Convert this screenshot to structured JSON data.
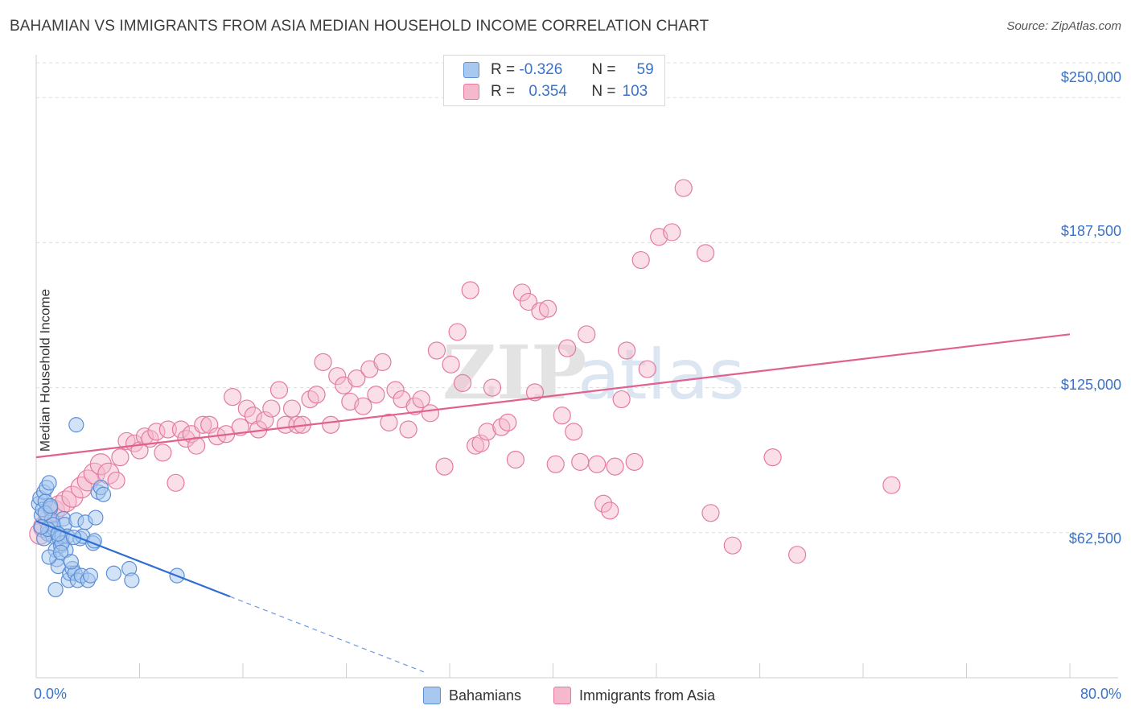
{
  "title": "BAHAMIAN VS IMMIGRANTS FROM ASIA MEDIAN HOUSEHOLD INCOME CORRELATION CHART",
  "source": "Source: ZipAtlas.com",
  "watermark": "ZIPatlas",
  "colors": {
    "blue_fill": "#a8c8f0",
    "blue_stroke": "#5b8fd6",
    "blue_line": "#2f6fd0",
    "pink_fill": "#f5b8cc",
    "pink_stroke": "#e47aa0",
    "pink_line": "#e0608e",
    "axis_text": "#3a72c8"
  },
  "legend": {
    "rows": [
      {
        "r_label": "R =",
        "r_value": "-0.326",
        "n_label": "N =",
        "n_value": "59"
      },
      {
        "r_label": "R =",
        "r_value": "0.354",
        "n_label": "N =",
        "n_value": "103"
      }
    ]
  },
  "chart_data": {
    "type": "scatter",
    "title": "BAHAMIAN VS IMMIGRANTS FROM ASIA MEDIAN HOUSEHOLD INCOME CORRELATION CHART",
    "xlabel": "",
    "ylabel": "Median Household Income",
    "xlim": [
      0,
      80
    ],
    "ylim": [
      0,
      265000
    ],
    "x_tick_labels": [
      "0.0%",
      "80.0%"
    ],
    "y_ticks": [
      62500,
      125000,
      187500,
      250000
    ],
    "y_tick_labels": [
      "$62,500",
      "$125,000",
      "$187,500",
      "$250,000"
    ],
    "series": [
      {
        "name": "Bahamians",
        "r": -0.326,
        "n": 59,
        "trend": {
          "x0": 0,
          "y0": 67500,
          "x1": 15,
          "y1": 35000,
          "dash_x1": 30,
          "dash_y1": 2500
        },
        "points": [
          [
            0.2,
            75000
          ],
          [
            0.3,
            77500
          ],
          [
            0.4,
            70000
          ],
          [
            0.5,
            72500
          ],
          [
            0.6,
            80000
          ],
          [
            0.7,
            76000
          ],
          [
            0.8,
            82000
          ],
          [
            0.9,
            62000
          ],
          [
            1.0,
            84000
          ],
          [
            1.1,
            73000
          ],
          [
            1.2,
            68000
          ],
          [
            1.3,
            61000
          ],
          [
            1.4,
            64000
          ],
          [
            1.5,
            55000
          ],
          [
            1.6,
            51000
          ],
          [
            1.7,
            48000
          ],
          [
            1.8,
            60000
          ],
          [
            1.9,
            57000
          ],
          [
            2.0,
            61000
          ],
          [
            2.1,
            68500
          ],
          [
            2.2,
            66000
          ],
          [
            2.3,
            55000
          ],
          [
            2.4,
            61000
          ],
          [
            2.5,
            42000
          ],
          [
            2.6,
            45000
          ],
          [
            2.8,
            47000
          ],
          [
            3.0,
            45000
          ],
          [
            3.1,
            68000
          ],
          [
            3.2,
            42000
          ],
          [
            3.4,
            60000
          ],
          [
            3.5,
            44000
          ],
          [
            3.6,
            61000
          ],
          [
            3.8,
            67000
          ],
          [
            4.0,
            42000
          ],
          [
            4.2,
            44000
          ],
          [
            4.4,
            58000
          ],
          [
            4.6,
            69000
          ],
          [
            4.8,
            80000
          ],
          [
            5.0,
            82000
          ],
          [
            6.0,
            45000
          ],
          [
            7.2,
            47000
          ],
          [
            7.4,
            42000
          ],
          [
            10.9,
            44000
          ],
          [
            1.5,
            38000
          ],
          [
            1.0,
            52000
          ],
          [
            0.6,
            60000
          ],
          [
            1.3,
            66000
          ],
          [
            2.0,
            58000
          ],
          [
            3.1,
            109000
          ],
          [
            0.9,
            64000
          ],
          [
            1.7,
            62000
          ],
          [
            2.9,
            60500
          ],
          [
            4.5,
            59000
          ],
          [
            0.4,
            65000
          ],
          [
            1.9,
            54000
          ],
          [
            2.7,
            50000
          ],
          [
            0.7,
            71000
          ],
          [
            5.2,
            79000
          ],
          [
            1.1,
            74000
          ]
        ]
      },
      {
        "name": "Immigrants from Asia",
        "r": 0.354,
        "n": 103,
        "trend": {
          "x0": 0,
          "y0": 95000,
          "x1": 80,
          "y1": 148000
        },
        "points": [
          [
            0.3,
            62000
          ],
          [
            0.6,
            65000
          ],
          [
            1.0,
            68000
          ],
          [
            1.4,
            72000
          ],
          [
            1.8,
            74000
          ],
          [
            2.3,
            76000
          ],
          [
            2.8,
            78000
          ],
          [
            3.5,
            82000
          ],
          [
            4.0,
            85000
          ],
          [
            4.5,
            88000
          ],
          [
            5.0,
            92000
          ],
          [
            5.6,
            88000
          ],
          [
            6.2,
            85000
          ],
          [
            6.5,
            95000
          ],
          [
            7.0,
            102000
          ],
          [
            7.6,
            101000
          ],
          [
            8.0,
            98000
          ],
          [
            8.4,
            104000
          ],
          [
            8.8,
            103000
          ],
          [
            9.3,
            106000
          ],
          [
            9.8,
            97000
          ],
          [
            10.2,
            107000
          ],
          [
            10.8,
            84000
          ],
          [
            11.2,
            107000
          ],
          [
            11.6,
            103000
          ],
          [
            12.0,
            105000
          ],
          [
            12.4,
            100000
          ],
          [
            12.9,
            109000
          ],
          [
            13.4,
            109000
          ],
          [
            14.0,
            104000
          ],
          [
            14.7,
            105000
          ],
          [
            15.2,
            121000
          ],
          [
            15.8,
            108000
          ],
          [
            16.3,
            116000
          ],
          [
            16.8,
            113000
          ],
          [
            17.2,
            107000
          ],
          [
            17.7,
            111000
          ],
          [
            18.2,
            116000
          ],
          [
            18.8,
            124000
          ],
          [
            19.3,
            109000
          ],
          [
            19.8,
            116000
          ],
          [
            20.2,
            109000
          ],
          [
            20.6,
            109000
          ],
          [
            21.2,
            120000
          ],
          [
            21.7,
            122000
          ],
          [
            22.2,
            136000
          ],
          [
            22.8,
            109000
          ],
          [
            23.3,
            130000
          ],
          [
            23.8,
            126000
          ],
          [
            24.3,
            119000
          ],
          [
            24.8,
            129000
          ],
          [
            25.3,
            117000
          ],
          [
            25.8,
            133000
          ],
          [
            26.3,
            122000
          ],
          [
            26.8,
            136000
          ],
          [
            27.3,
            110000
          ],
          [
            27.8,
            124000
          ],
          [
            28.3,
            120000
          ],
          [
            28.8,
            107000
          ],
          [
            29.3,
            117000
          ],
          [
            29.8,
            120000
          ],
          [
            30.5,
            114000
          ],
          [
            31.0,
            141000
          ],
          [
            31.6,
            91000
          ],
          [
            32.1,
            135000
          ],
          [
            32.6,
            149000
          ],
          [
            33.0,
            127000
          ],
          [
            33.6,
            167000
          ],
          [
            34.0,
            100000
          ],
          [
            34.4,
            101000
          ],
          [
            34.9,
            106000
          ],
          [
            35.3,
            125000
          ],
          [
            36.0,
            108000
          ],
          [
            36.5,
            110000
          ],
          [
            37.1,
            94000
          ],
          [
            37.6,
            166000
          ],
          [
            38.1,
            162000
          ],
          [
            38.6,
            123000
          ],
          [
            39.0,
            158000
          ],
          [
            39.6,
            159000
          ],
          [
            40.2,
            92000
          ],
          [
            40.7,
            113000
          ],
          [
            41.1,
            142000
          ],
          [
            41.6,
            106000
          ],
          [
            42.1,
            93000
          ],
          [
            42.6,
            148000
          ],
          [
            43.4,
            92000
          ],
          [
            43.9,
            75000
          ],
          [
            44.4,
            72000
          ],
          [
            44.8,
            91000
          ],
          [
            45.3,
            120000
          ],
          [
            45.7,
            141000
          ],
          [
            46.3,
            93000
          ],
          [
            46.8,
            180000
          ],
          [
            47.3,
            133000
          ],
          [
            48.2,
            190000
          ],
          [
            49.2,
            192000
          ],
          [
            50.1,
            211000
          ],
          [
            51.8,
            183000
          ],
          [
            52.2,
            71000
          ],
          [
            53.9,
            57000
          ],
          [
            57.0,
            95000
          ],
          [
            58.9,
            53000
          ],
          [
            66.2,
            83000
          ]
        ]
      }
    ]
  },
  "ylabel": "Median Household Income",
  "bottom_legend": {
    "items": [
      "Bahamians",
      "Immigrants from Asia"
    ]
  },
  "x_labels": {
    "left": "0.0%",
    "right": "80.0%"
  },
  "y_labels": [
    "$250,000",
    "$187,500",
    "$125,000",
    "$62,500"
  ]
}
